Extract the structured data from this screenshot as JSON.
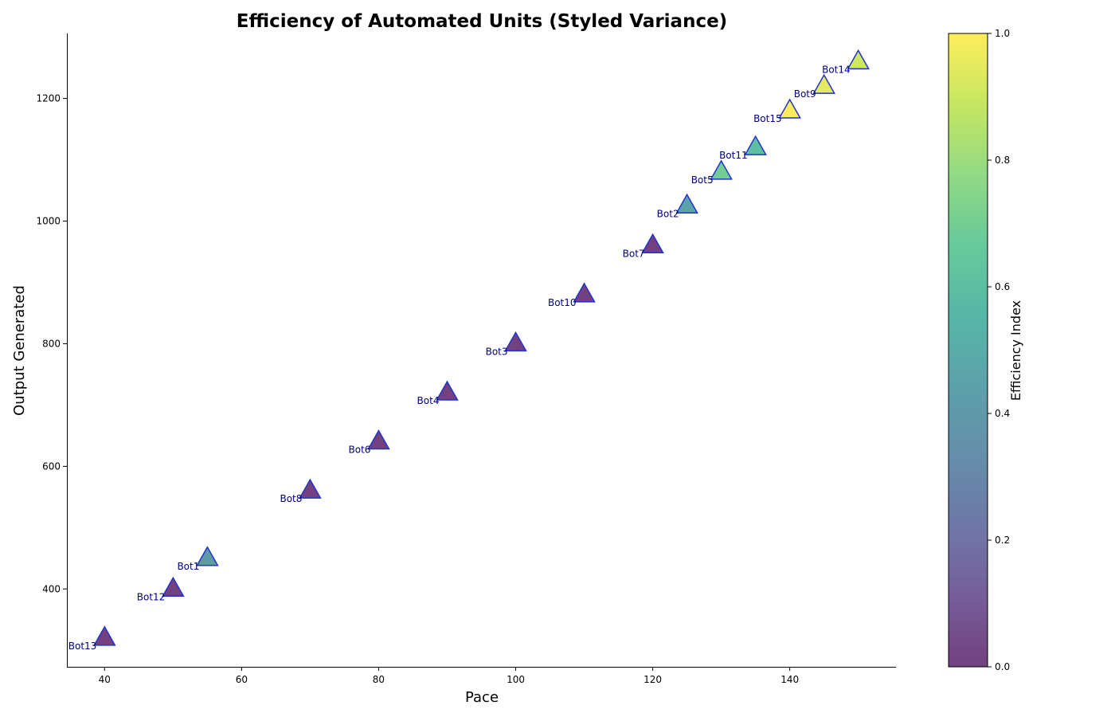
{
  "chart_data": {
    "type": "scatter",
    "title": "Efficiency of Automated Units (Styled Variance)",
    "xlabel": "Pace",
    "ylabel": "Output Generated",
    "xlim": [
      34.5,
      155.5
    ],
    "ylim": [
      273,
      1306
    ],
    "x_ticks": [
      40,
      60,
      80,
      100,
      120,
      140
    ],
    "y_ticks": [
      400,
      600,
      800,
      1000,
      1200
    ],
    "grid": false,
    "marker": "triangle",
    "colormap": "viridis",
    "marker_edge_color": "#2233cc",
    "label_color": "#000080",
    "colorbar": {
      "label": "Efficiency Index",
      "range": [
        0.0,
        1.0
      ],
      "ticks": [
        "0.0",
        "0.2",
        "0.4",
        "0.6",
        "0.8",
        "1.0"
      ]
    },
    "points": [
      {
        "label": "Bot13",
        "x": 40,
        "y": 320,
        "efficiency": 0.0
      },
      {
        "label": "Bot12",
        "x": 50,
        "y": 400,
        "efficiency": 0.0
      },
      {
        "label": "Bot1",
        "x": 55,
        "y": 450,
        "efficiency": 0.4
      },
      {
        "label": "Bot8",
        "x": 70,
        "y": 560,
        "efficiency": 0.0
      },
      {
        "label": "Bot6",
        "x": 80,
        "y": 640,
        "efficiency": 0.0
      },
      {
        "label": "Bot4",
        "x": 90,
        "y": 720,
        "efficiency": 0.0
      },
      {
        "label": "Bot3",
        "x": 100,
        "y": 800,
        "efficiency": 0.0
      },
      {
        "label": "Bot10",
        "x": 110,
        "y": 880,
        "efficiency": 0.0
      },
      {
        "label": "Bot7",
        "x": 120,
        "y": 960,
        "efficiency": 0.0
      },
      {
        "label": "Bot2",
        "x": 125,
        "y": 1025,
        "efficiency": 0.45
      },
      {
        "label": "Bot5",
        "x": 130,
        "y": 1080,
        "efficiency": 0.7
      },
      {
        "label": "Bot11",
        "x": 135,
        "y": 1120,
        "efficiency": 0.6
      },
      {
        "label": "Bot15",
        "x": 140,
        "y": 1180,
        "efficiency": 1.0
      },
      {
        "label": "Bot9",
        "x": 145,
        "y": 1220,
        "efficiency": 0.95
      },
      {
        "label": "Bot14",
        "x": 150,
        "y": 1260,
        "efficiency": 0.9
      }
    ]
  }
}
